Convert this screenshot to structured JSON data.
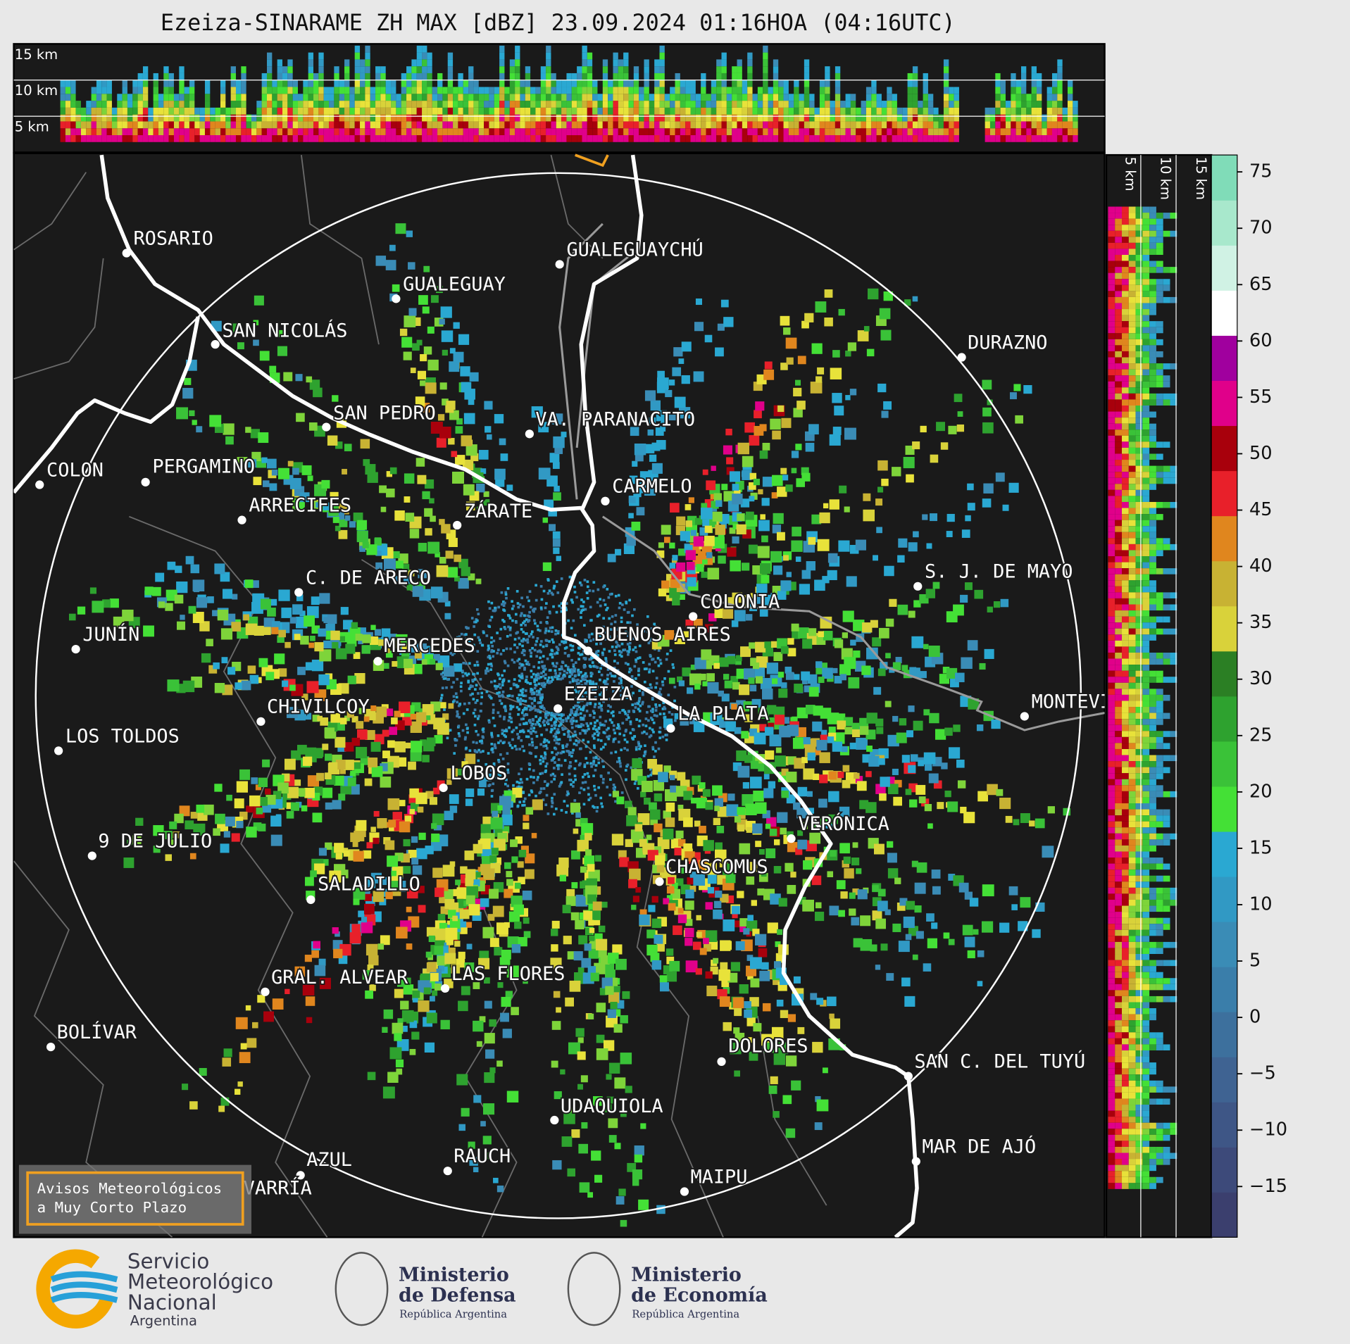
{
  "header": {
    "title": "Ezeiza-SINARAME ZH MAX [dBZ] 23.09.2024 01:16HOA (04:16UTC)"
  },
  "top_profile": {
    "labels": [
      "15 km",
      "10 km",
      "5 km"
    ]
  },
  "side_profile": {
    "labels": [
      "5 km",
      "10 km",
      "15 km"
    ]
  },
  "map": {
    "cities": [
      "ROSARIO",
      "GUALEGUAYCHÚ",
      "GUALEGUAY",
      "SAN NICOLÁS",
      "DURAZNO",
      "SAN PEDRO",
      "VA. PARANACITO",
      "COLON",
      "PERGAMINO",
      "CARMELO",
      "ARRECIFES",
      "ZÁRATE",
      "S. J. DE MAYO",
      "C. DE ARECO",
      "COLONIA",
      "JUNÍN",
      "BUENOS AIRES",
      "MERCEDES",
      "EZEIZA",
      "CHIVILCOY",
      "MONTEVIDEO",
      "LA PLATA",
      "LOS TOLDOS",
      "LOBOS",
      "VERÓNICA",
      "9 DE JULIO",
      "CHASCOMUS",
      "SALADILLO",
      "GRAL. ALVEAR",
      "LAS FLORES",
      "BOLÍVAR",
      "DOLORES",
      "SAN C. DEL TUYÚ",
      "UDAQUIOLA",
      "MAR DE AJÓ",
      "AZUL",
      "RAUCH",
      "OLAVARRÍA",
      "MAIPU"
    ]
  },
  "colorbar": {
    "range": [
      -19.5,
      76.5
    ],
    "ticks": [
      75,
      70,
      65,
      60,
      55,
      50,
      45,
      40,
      35,
      30,
      25,
      20,
      15,
      10,
      5,
      0,
      {
        "value": -5,
        "label": "−5"
      },
      {
        "value": -10,
        "label": "−10"
      },
      {
        "value": -15,
        "label": "−15"
      }
    ],
    "colors": [
      "#3b3f6e",
      "#3d4a7a",
      "#3e5686",
      "#3f6392",
      "#3d709d",
      "#3a7eaa",
      "#3a8cb6",
      "#3199c4",
      "#2aa8d2",
      "#44e036",
      "#3ac238",
      "#2ea22f",
      "#2b7f24",
      "#d9d23a",
      "#c8b233",
      "#e0861e",
      "#e8202a",
      "#a8000c",
      "#e0008a",
      "#a0009e",
      "#ffffff",
      "#d0f2e4",
      "#a8e8cc",
      "#80dcb8"
    ]
  },
  "warning": {
    "lines": [
      "Avisos Meteorológicos",
      "a Muy Corto Plazo"
    ]
  },
  "logos": {
    "smn": [
      "Servicio",
      "Meteorológico",
      "Nacional",
      "Argentina"
    ],
    "defensa": [
      "Ministerio",
      "de Defensa",
      "República Argentina"
    ],
    "economia": [
      "Ministerio",
      "de Economía",
      "República Argentina"
    ]
  }
}
